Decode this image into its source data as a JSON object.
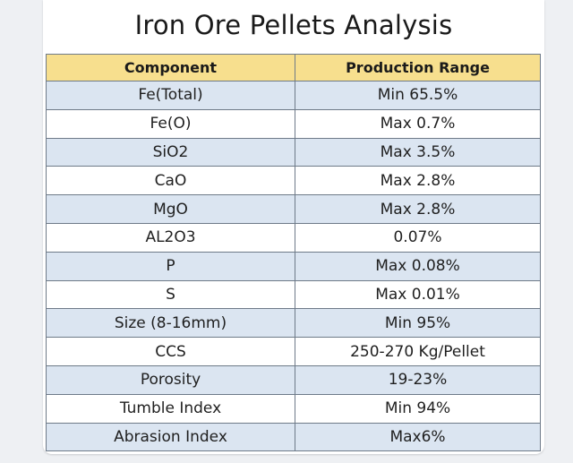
{
  "title": "Iron Ore Pellets Analysis",
  "table": {
    "headers": [
      "Component",
      "Production Range"
    ],
    "rows": [
      [
        "Fe(Total)",
        "Min 65.5%"
      ],
      [
        "Fe(O)",
        "Max 0.7%"
      ],
      [
        "SiO2",
        "Max 3.5%"
      ],
      [
        "CaO",
        "Max 2.8%"
      ],
      [
        "MgO",
        "Max 2.8%"
      ],
      [
        "AL2O3",
        "0.07%"
      ],
      [
        "P",
        "Max 0.08%"
      ],
      [
        "S",
        "Max 0.01%"
      ],
      [
        "Size  (8-16mm)",
        "Min 95%"
      ],
      [
        "CCS",
        "250-270 Kg/Pellet"
      ],
      [
        "Porosity",
        "19-23%"
      ],
      [
        "Tumble Index",
        "Min 94%"
      ],
      [
        "Abrasion Index",
        "Max6%"
      ]
    ]
  },
  "colors": {
    "header_bg": "#f7df8e",
    "row_alt_bg": "#dbe5f1",
    "grid_line": "#6e7a88",
    "page_bg": "#eef0f3"
  }
}
